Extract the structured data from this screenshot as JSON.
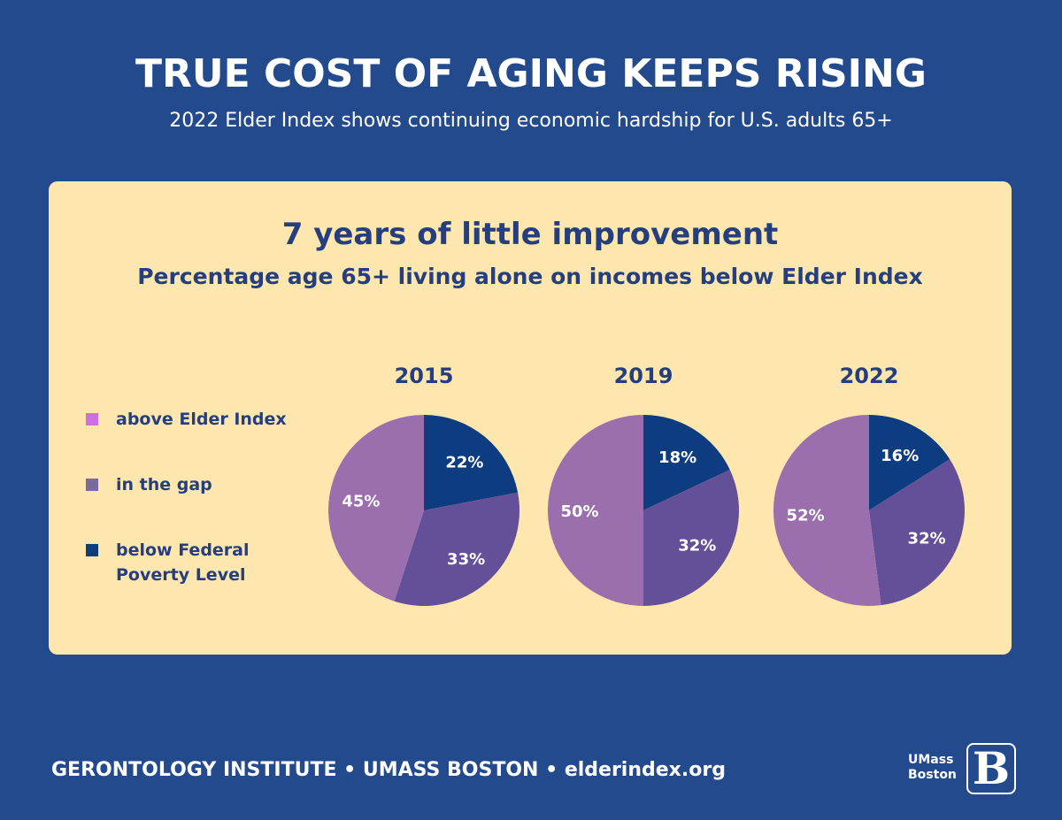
{
  "header": {
    "title": "TRUE COST OF AGING KEEPS RISING",
    "subtitle": "2022 Elder Index shows continuing economic hardship for U.S. adults 65+"
  },
  "panel": {
    "title": "7 years of little improvement",
    "subtitle": "Percentage age 65+ living alone on incomes below Elder Index"
  },
  "chart_data": {
    "type": "pie",
    "title": "7 years of little improvement",
    "subtitle": "Percentage age 65+ living alone on incomes below Elder Index",
    "legend_position": "left",
    "legend": [
      {
        "key": "above",
        "label": "above Elder Index",
        "swatch_color": "#d070e0"
      },
      {
        "key": "gap",
        "label": "in the gap",
        "swatch_color": "#7b6aa0"
      },
      {
        "key": "below",
        "label": "below Federal Poverty Level",
        "swatch_color": "#0d3d80"
      }
    ],
    "slice_colors": {
      "below": "#0d3d80",
      "gap": "#645098",
      "above": "#9b6fae"
    },
    "pies": [
      {
        "year": "2015",
        "slices": [
          {
            "key": "below",
            "value": 22,
            "label": "22%"
          },
          {
            "key": "gap",
            "value": 33,
            "label": "33%"
          },
          {
            "key": "above",
            "value": 45,
            "label": "45%"
          }
        ]
      },
      {
        "year": "2019",
        "slices": [
          {
            "key": "below",
            "value": 18,
            "label": "18%"
          },
          {
            "key": "gap",
            "value": 32,
            "label": "32%"
          },
          {
            "key": "above",
            "value": 50,
            "label": "50%"
          }
        ]
      },
      {
        "year": "2022",
        "slices": [
          {
            "key": "below",
            "value": 16,
            "label": "16%"
          },
          {
            "key": "gap",
            "value": 32,
            "label": "32%"
          },
          {
            "key": "above",
            "value": 52,
            "label": "52%"
          }
        ]
      }
    ]
  },
  "footer": {
    "text": "GERONTOLOGY INSTITUTE  • UMASS BOSTON  •  elderindex.org"
  },
  "logo": {
    "line1": "UMass",
    "line2": "Boston",
    "mark": "B"
  }
}
